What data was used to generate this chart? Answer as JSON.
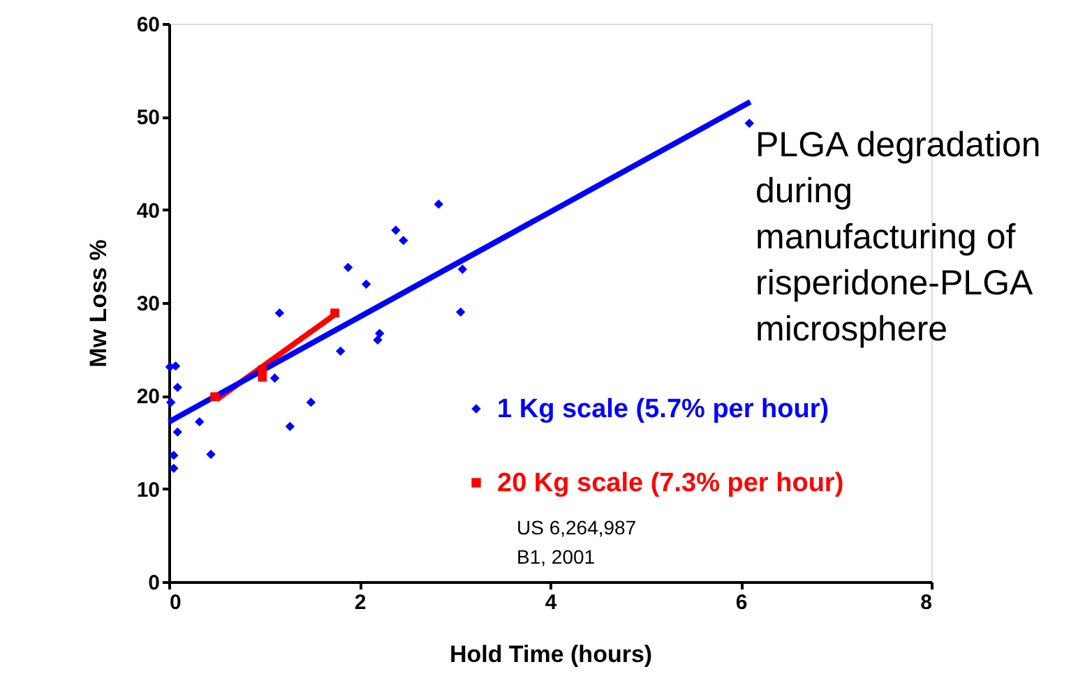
{
  "chart_data": {
    "type": "scatter",
    "xlabel": "Hold Time (hours)",
    "ylabel": "Mw Loss %",
    "xlim": [
      0,
      8
    ],
    "xticks": [
      0,
      2,
      4,
      6,
      8
    ],
    "ylim": [
      0,
      60
    ],
    "yticks": [
      0,
      10,
      20,
      30,
      40,
      50,
      60
    ],
    "grid": false,
    "legend": "right",
    "series": [
      {
        "name": "1 Kg scale (5.7% per hour)",
        "marker": "diamond",
        "color": "#0000ff",
        "x": [
          0.01,
          0.07,
          0.09,
          0.02,
          0.09,
          0.05,
          0.05,
          0.32,
          0.44,
          1.16,
          1.11,
          1.27,
          1.49,
          1.8,
          1.88,
          2.07,
          2.19,
          2.21,
          2.38,
          2.46,
          2.83,
          3.08,
          3.06,
          6.09
        ],
        "values": [
          23.1,
          23.2,
          20.9,
          19.3,
          16.1,
          13.6,
          12.2,
          17.2,
          13.7,
          28.9,
          21.9,
          16.7,
          19.3,
          24.8,
          33.8,
          32.0,
          26.0,
          26.7,
          37.8,
          36.7,
          40.6,
          33.6,
          29.0,
          49.3
        ]
      },
      {
        "type": "line",
        "color": "#0000ff",
        "line_style": "solid",
        "x": [
          0,
          6.1
        ],
        "values": [
          17.2,
          51.6
        ]
      },
      {
        "name": "20 Kg scale (7.3% per hour)",
        "marker": "square",
        "color": "#ff0000",
        "x": [
          0.48,
          0.98,
          0.98,
          1.74
        ],
        "values": [
          19.9,
          22.8,
          22.0,
          28.9
        ]
      },
      {
        "type": "line",
        "color": "#ff0000",
        "line_style": "solid",
        "x": [
          0.5,
          1.75
        ],
        "values": [
          19.6,
          28.8
        ]
      }
    ],
    "annotations": [
      "PLGA degradation during manufacturing of risperidone-PLGA microsphere",
      "US 6,264,987 B1, 2001"
    ]
  }
}
